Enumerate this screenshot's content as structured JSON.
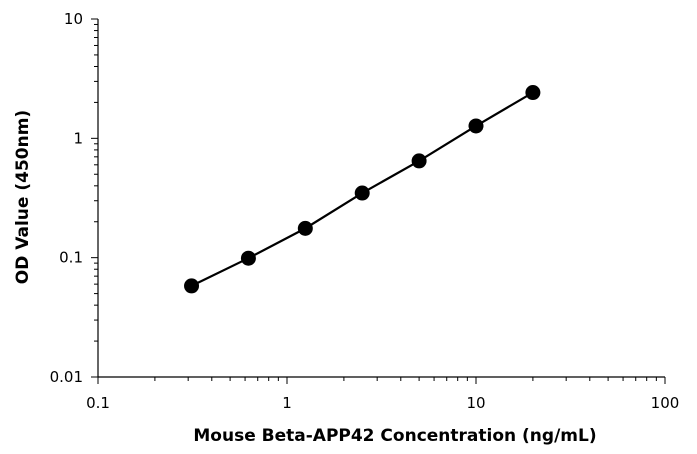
{
  "chart_data": {
    "type": "line",
    "title": "",
    "xlabel": "Mouse Beta-APP42 Concentration (ng/mL)",
    "ylabel": "OD Value (450nm)",
    "x_scale": "log",
    "y_scale": "log",
    "xlim": [
      0.1,
      100
    ],
    "ylim": [
      0.01,
      10
    ],
    "x_ticks": [
      0.1,
      1,
      10,
      100
    ],
    "x_tick_labels": [
      "0.1",
      "1",
      "10",
      "100"
    ],
    "y_ticks": [
      0.01,
      0.1,
      1,
      10
    ],
    "y_tick_labels": [
      "0.01",
      "0.1",
      "1",
      "10"
    ],
    "grid": false,
    "legend": "none",
    "series": [
      {
        "x": [
          0.3125,
          0.625,
          1.25,
          2.5,
          5,
          10,
          20
        ],
        "y": [
          0.058,
          0.099,
          0.176,
          0.348,
          0.647,
          1.27,
          2.42
        ],
        "color": "#000000"
      }
    ]
  }
}
